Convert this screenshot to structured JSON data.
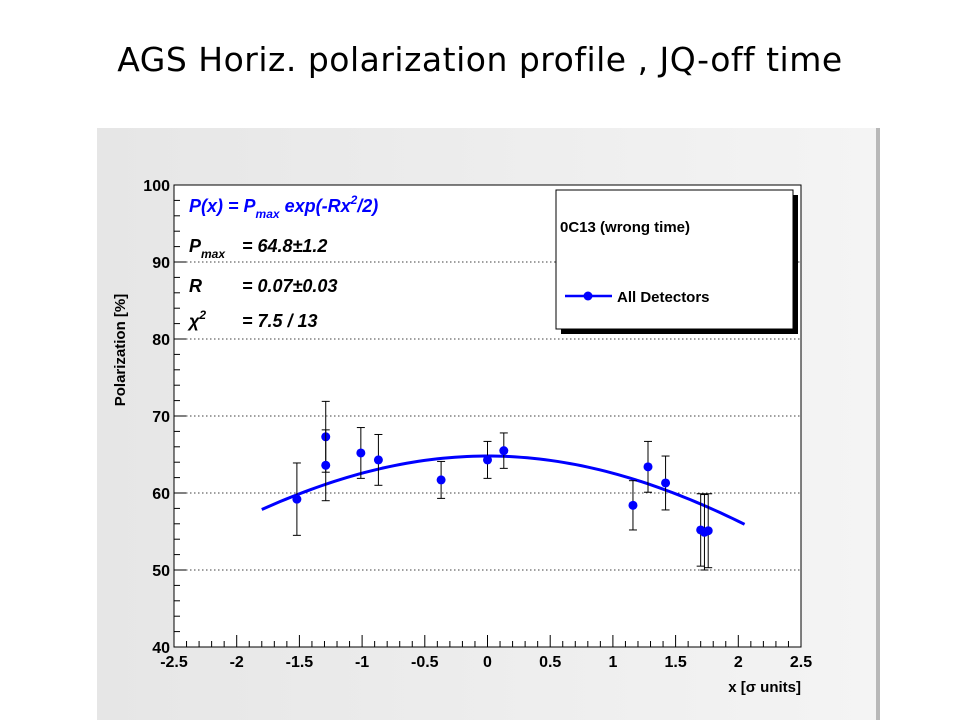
{
  "slide": {
    "title": "AGS Horiz. polarization profile , JQ-off time"
  },
  "chart_data": {
    "type": "scatter",
    "xlabel": "x [σ units]",
    "ylabel": "Polarization [%]",
    "xlim": [
      -2.5,
      2.5
    ],
    "ylim": [
      40,
      100
    ],
    "xticks": [
      "-2.5",
      "-2",
      "-1.5",
      "-1",
      "-0.5",
      "0",
      "0.5",
      "1",
      "1.5",
      "2",
      "2.5"
    ],
    "yticks": [
      "40",
      "50",
      "60",
      "70",
      "80",
      "90",
      "100"
    ],
    "grid": "horizontal dotted",
    "fit_info": {
      "formula": "P(x) = P_max exp(-Rx²/2)",
      "pmax_label": "P_max",
      "pmax_value": "= 64.8±1.2",
      "r_label": "R",
      "r_value": "= 0.07±0.03",
      "chi_label": "χ²",
      "chi_value": "= 7.5 / 13"
    },
    "legend": {
      "header": "0C13 (wrong time)",
      "placement": "top-right",
      "entries": [
        {
          "label": "All Detectors",
          "color": "#0000ff"
        }
      ]
    },
    "fit_curve": {
      "pmax": 64.8,
      "r": 0.07,
      "x_range": [
        -1.8,
        2.05
      ],
      "color": "#0000ff"
    },
    "series": [
      {
        "name": "All Detectors",
        "color": "#0000ff",
        "points": [
          {
            "x": -1.52,
            "y": 59.2,
            "err": 4.7
          },
          {
            "x": -1.29,
            "y": 67.3,
            "err": 4.6
          },
          {
            "x": -1.29,
            "y": 63.6,
            "err": 4.6
          },
          {
            "x": -1.01,
            "y": 65.2,
            "err": 3.3
          },
          {
            "x": -0.87,
            "y": 64.3,
            "err": 3.3
          },
          {
            "x": -0.37,
            "y": 61.7,
            "err": 2.4
          },
          {
            "x": 0.0,
            "y": 64.3,
            "err": 2.4
          },
          {
            "x": 0.13,
            "y": 65.5,
            "err": 2.3
          },
          {
            "x": 1.16,
            "y": 58.4,
            "err": 3.2
          },
          {
            "x": 1.28,
            "y": 63.4,
            "err": 3.3
          },
          {
            "x": 1.42,
            "y": 61.3,
            "err": 3.5
          },
          {
            "x": 1.7,
            "y": 55.2,
            "err": 4.7
          },
          {
            "x": 1.73,
            "y": 54.9,
            "err": 4.9
          },
          {
            "x": 1.76,
            "y": 55.1,
            "err": 4.8
          }
        ]
      }
    ]
  }
}
